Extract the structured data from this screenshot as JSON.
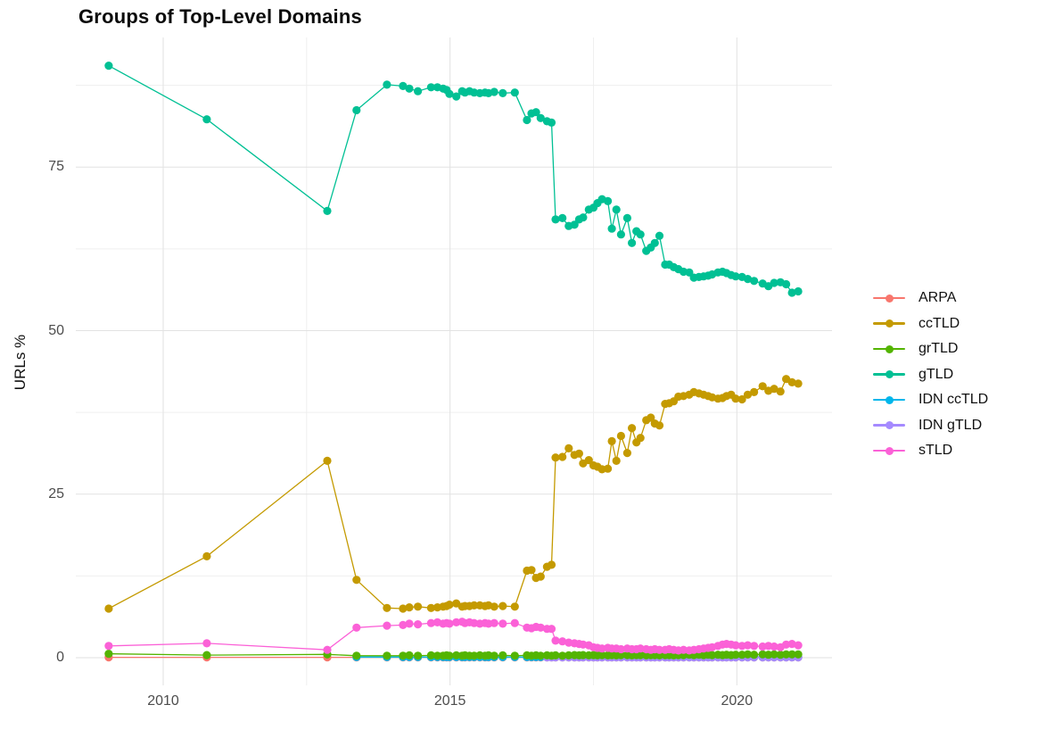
{
  "chart_data": {
    "type": "line",
    "title": "Groups of Top-Level Domains",
    "xlabel": "",
    "ylabel": "URLs %",
    "x_tick_values": [
      2010,
      2015,
      2020
    ],
    "x_tick_labels": [
      "2010",
      "2015",
      "2020"
    ],
    "x_minor_gridlines": [
      2012.5,
      2017.5
    ],
    "y_tick_values": [
      0,
      25,
      50,
      75
    ],
    "y_tick_labels": [
      "0",
      "25",
      "50",
      "75"
    ],
    "y_minor_gridlines": [
      12.5,
      37.5,
      62.5,
      87.5
    ],
    "xlim": [
      2008.48,
      2021.67
    ],
    "ylim": [
      -4.6,
      95.1
    ],
    "grid": true,
    "legend_position": "right",
    "x": [
      2009.05,
      2010.76,
      2012.86,
      2013.37,
      2013.9,
      2014.18,
      2014.29,
      2014.44,
      2014.67,
      2014.78,
      2014.88,
      2014.94,
      2014.99,
      2015.11,
      2015.21,
      2015.26,
      2015.34,
      2015.42,
      2015.52,
      2015.61,
      2015.67,
      2015.77,
      2015.92,
      2016.13,
      2016.34,
      2016.42,
      2016.5,
      2016.58,
      2016.69,
      2016.77,
      2016.84,
      2016.96,
      2017.07,
      2017.17,
      2017.25,
      2017.32,
      2017.42,
      2017.5,
      2017.57,
      2017.65,
      2017.75,
      2017.82,
      2017.9,
      2017.98,
      2018.09,
      2018.17,
      2018.25,
      2018.32,
      2018.42,
      2018.5,
      2018.57,
      2018.65,
      2018.75,
      2018.82,
      2018.9,
      2018.98,
      2019.07,
      2019.17,
      2019.25,
      2019.34,
      2019.42,
      2019.5,
      2019.57,
      2019.67,
      2019.75,
      2019.82,
      2019.9,
      2019.98,
      2020.09,
      2020.19,
      2020.3,
      2020.45,
      2020.55,
      2020.65,
      2020.76,
      2020.86,
      2020.96,
      2021.07
    ],
    "series": [
      {
        "name": "ARPA",
        "color": "#F8766D",
        "y": [
          0.05,
          0.05,
          0.05,
          0.05,
          0.05,
          0.05,
          0.05,
          0.05,
          0.05,
          0.05,
          0.05,
          0.05,
          0.05,
          0.05,
          0.05,
          0.05,
          0.05,
          0.05,
          0.05,
          0.05,
          0.05,
          0.05,
          0.05,
          0.05,
          0.05,
          0.05,
          0.05,
          0.05,
          0.05,
          0.05,
          0.05,
          0.05,
          0.05,
          0.05,
          0.05,
          0.05,
          0.05,
          0.05,
          0.05,
          0.05,
          0.05,
          0.05,
          0.05,
          0.05,
          0.05,
          0.05,
          0.05,
          0.05,
          0.05,
          0.05,
          0.05,
          0.05,
          0.05,
          0.05,
          0.05,
          0.05,
          0.05,
          0.05,
          0.05,
          0.05,
          0.05,
          0.05,
          0.05,
          0.05,
          0.05,
          0.05,
          0.05,
          0.05,
          0.05,
          0.05,
          0.05,
          0.05,
          0.05,
          0.05,
          0.05,
          0.05,
          0.05,
          0.05
        ]
      },
      {
        "name": "ccTLD",
        "color": "#C49A00",
        "y": [
          7.5,
          15.5,
          30.1,
          11.9,
          7.6,
          7.5,
          7.7,
          7.8,
          7.6,
          7.7,
          7.8,
          7.9,
          8.1,
          8.3,
          7.8,
          7.9,
          7.9,
          8.0,
          8.0,
          7.9,
          8.0,
          7.8,
          7.9,
          7.8,
          13.3,
          13.4,
          12.2,
          12.4,
          13.9,
          14.2,
          30.6,
          30.7,
          32.0,
          31.0,
          31.2,
          29.7,
          30.2,
          29.4,
          29.2,
          28.8,
          28.9,
          33.1,
          30.1,
          33.9,
          31.3,
          35.1,
          32.9,
          33.6,
          36.3,
          36.7,
          35.8,
          35.5,
          38.8,
          38.9,
          39.2,
          39.9,
          40.0,
          40.2,
          40.6,
          40.4,
          40.2,
          40.0,
          39.8,
          39.6,
          39.7,
          40.0,
          40.2,
          39.6,
          39.5,
          40.2,
          40.6,
          41.5,
          40.8,
          41.1,
          40.7,
          42.6,
          42.1,
          41.9
        ]
      },
      {
        "name": "grTLD",
        "color": "#53B400",
        "y": [
          0.6,
          0.4,
          0.5,
          0.3,
          0.3,
          0.3,
          0.35,
          0.3,
          0.35,
          0.3,
          0.3,
          0.35,
          0.3,
          0.35,
          0.3,
          0.35,
          0.3,
          0.3,
          0.35,
          0.3,
          0.35,
          0.3,
          0.35,
          0.3,
          0.35,
          0.3,
          0.35,
          0.3,
          0.35,
          0.3,
          0.35,
          0.3,
          0.35,
          0.4,
          0.35,
          0.4,
          0.35,
          0.4,
          0.35,
          0.4,
          0.35,
          0.4,
          0.35,
          0.4,
          0.4,
          0.35,
          0.4,
          0.4,
          0.35,
          0.4,
          0.4,
          0.35,
          0.4,
          0.4,
          0.35,
          0.4,
          0.4,
          0.45,
          0.4,
          0.45,
          0.4,
          0.45,
          0.4,
          0.45,
          0.4,
          0.45,
          0.4,
          0.45,
          0.45,
          0.5,
          0.45,
          0.5,
          0.45,
          0.5,
          0.45,
          0.5,
          0.5,
          0.5
        ]
      },
      {
        "name": "gTLD",
        "color": "#00C094",
        "y": [
          90.5,
          82.3,
          68.3,
          83.7,
          87.6,
          87.4,
          87.0,
          86.6,
          87.2,
          87.2,
          87.0,
          86.8,
          86.2,
          85.8,
          86.6,
          86.4,
          86.6,
          86.4,
          86.3,
          86.4,
          86.3,
          86.5,
          86.3,
          86.4,
          82.2,
          83.2,
          83.4,
          82.5,
          82.0,
          81.8,
          67.0,
          67.2,
          66.0,
          66.2,
          67.0,
          67.3,
          68.5,
          68.8,
          69.5,
          70.1,
          69.8,
          65.6,
          68.5,
          64.7,
          67.2,
          63.4,
          65.2,
          64.7,
          62.2,
          62.7,
          63.4,
          64.5,
          60.1,
          60.1,
          59.7,
          59.4,
          59.0,
          58.9,
          58.1,
          58.2,
          58.3,
          58.4,
          58.6,
          58.9,
          59.0,
          58.8,
          58.5,
          58.3,
          58.2,
          57.9,
          57.6,
          57.2,
          56.8,
          57.3,
          57.4,
          57.1,
          55.8,
          56.0
        ]
      },
      {
        "name": "IDN ccTLD",
        "color": "#00B6EB",
        "y": [
          null,
          null,
          null,
          0.1,
          0.1,
          0.1,
          0.1,
          0.1,
          0.1,
          0.1,
          0.1,
          0.1,
          0.1,
          0.1,
          0.1,
          0.1,
          0.1,
          0.1,
          0.1,
          0.1,
          0.1,
          0.1,
          0.1,
          0.1,
          0.1,
          0.1,
          0.1,
          0.1,
          0.1,
          0.1,
          0.1,
          0.1,
          0.1,
          0.1,
          0.1,
          0.1,
          0.1,
          0.1,
          0.1,
          0.1,
          0.1,
          0.1,
          0.1,
          0.1,
          0.1,
          0.1,
          0.1,
          0.1,
          0.1,
          0.1,
          0.1,
          0.1,
          0.1,
          0.1,
          0.1,
          0.1,
          0.1,
          0.1,
          0.1,
          0.1,
          0.1,
          0.1,
          0.1,
          0.1,
          0.1,
          0.1,
          0.1,
          0.1,
          0.1,
          0.1,
          0.1,
          0.1,
          0.1,
          0.1,
          0.1,
          0.1,
          0.1,
          0.1
        ]
      },
      {
        "name": "IDN gTLD",
        "color": "#A58AFF",
        "y": [
          null,
          null,
          null,
          null,
          null,
          null,
          null,
          null,
          null,
          null,
          null,
          null,
          null,
          null,
          null,
          null,
          null,
          null,
          null,
          null,
          null,
          null,
          null,
          null,
          null,
          null,
          null,
          null,
          0.05,
          0.05,
          0.05,
          0.05,
          0.05,
          0.05,
          0.05,
          0.05,
          0.05,
          0.05,
          0.05,
          0.05,
          0.05,
          0.05,
          0.05,
          0.05,
          0.05,
          0.05,
          0.05,
          0.05,
          0.05,
          0.05,
          0.05,
          0.05,
          0.05,
          0.05,
          0.05,
          0.05,
          0.05,
          0.05,
          0.05,
          0.05,
          0.05,
          0.05,
          0.05,
          0.05,
          0.05,
          0.05,
          0.05,
          0.05,
          0.05,
          0.05,
          0.05,
          0.05,
          0.05,
          0.05,
          0.05,
          0.05,
          0.05,
          0.05
        ]
      },
      {
        "name": "sTLD",
        "color": "#FB61D7",
        "y": [
          1.8,
          2.2,
          1.2,
          4.6,
          4.9,
          5.0,
          5.2,
          5.1,
          5.3,
          5.4,
          5.2,
          5.3,
          5.2,
          5.4,
          5.5,
          5.3,
          5.4,
          5.3,
          5.2,
          5.3,
          5.2,
          5.3,
          5.2,
          5.3,
          4.6,
          4.5,
          4.7,
          4.6,
          4.4,
          4.4,
          2.6,
          2.5,
          2.3,
          2.2,
          2.1,
          2.0,
          1.9,
          1.6,
          1.5,
          1.4,
          1.5,
          1.4,
          1.4,
          1.3,
          1.4,
          1.3,
          1.3,
          1.4,
          1.3,
          1.2,
          1.3,
          1.2,
          1.2,
          1.3,
          1.2,
          1.1,
          1.2,
          1.1,
          1.2,
          1.3,
          1.4,
          1.5,
          1.6,
          1.8,
          2.0,
          2.1,
          2.0,
          1.9,
          1.8,
          1.9,
          1.8,
          1.7,
          1.8,
          1.7,
          1.6,
          2.0,
          2.1,
          1.9
        ]
      }
    ],
    "draw_order": [
      "ARPA",
      "IDN ccTLD",
      "IDN gTLD",
      "grTLD",
      "gTLD",
      "ccTLD",
      "sTLD"
    ]
  },
  "style": {
    "grid_major_color": "#e2e2e2",
    "grid_minor_color": "#efefef",
    "tick_text_color": "#4d4d4d",
    "background": "#ffffff"
  }
}
